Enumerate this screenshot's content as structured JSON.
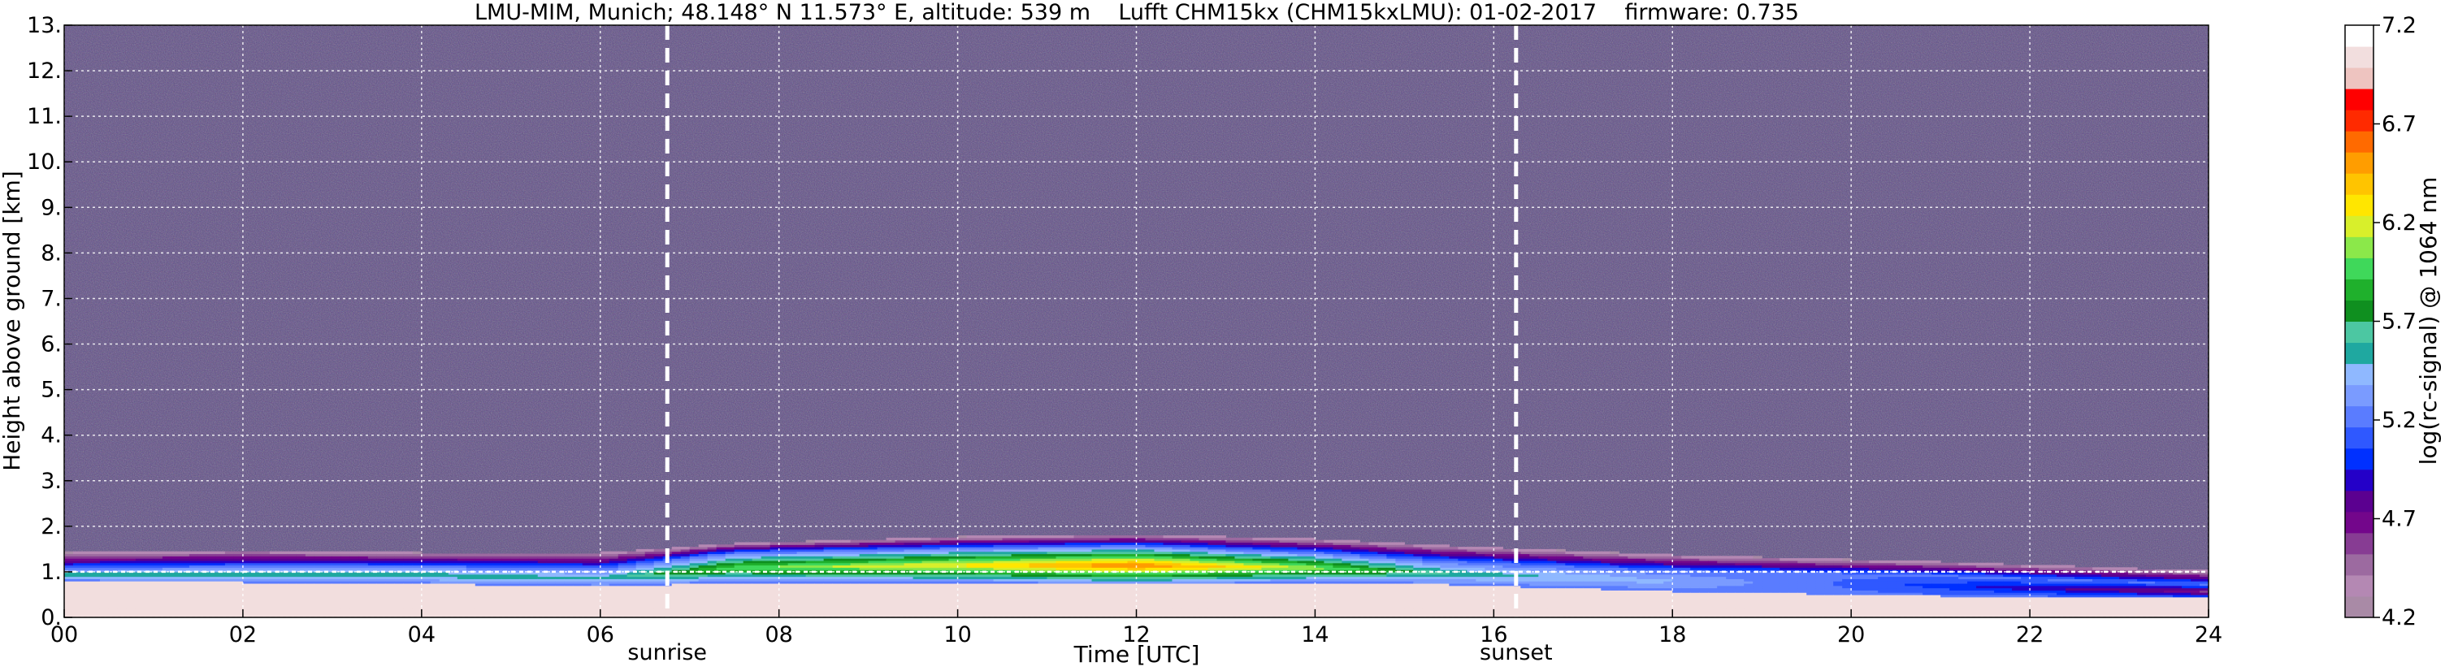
{
  "chart_data": {
    "type": "heatmap",
    "title": "LMU-MIM, Munich; 48.148° N 11.573° E, altitude: 539 m    Lufft CHM15kx (CHM15kxLMU): 01-02-2017    firmware: 0.735",
    "xlabel": "Time [UTC]",
    "ylabel": "Height above ground [km]",
    "colorbar_label": "log(rc-signal) @ 1064 nm",
    "xlim": [
      0,
      24
    ],
    "ylim": [
      0,
      13
    ],
    "x_ticks": [
      "00",
      "02",
      "04",
      "06",
      "08",
      "10",
      "12",
      "14",
      "16",
      "18",
      "20",
      "22",
      "24"
    ],
    "x_tick_values": [
      0,
      2,
      4,
      6,
      8,
      10,
      12,
      14,
      16,
      18,
      20,
      22,
      24
    ],
    "y_ticks": [
      "0.",
      "1.",
      "2.",
      "3.",
      "4.",
      "5.",
      "6.",
      "7.",
      "8.",
      "9.",
      "10.",
      "11.",
      "12.",
      "13."
    ],
    "y_tick_values": [
      0,
      1,
      2,
      3,
      4,
      5,
      6,
      7,
      8,
      9,
      10,
      11,
      12,
      13
    ],
    "colorbar_range": [
      4.2,
      7.2
    ],
    "colorbar_ticks": [
      "4.2",
      "4.7",
      "5.2",
      "5.7",
      "6.2",
      "6.7",
      "7.2"
    ],
    "colorbar_tick_values": [
      4.2,
      4.7,
      5.2,
      5.7,
      6.2,
      6.7,
      7.2
    ],
    "colorbar_colors": [
      "#a98aa6",
      "#b488b3",
      "#9c6aa0",
      "#873c93",
      "#73068b",
      "#5b0090",
      "#2400c8",
      "#0030ff",
      "#2f58ff",
      "#5a7cff",
      "#7a9bff",
      "#8fb8ff",
      "#1fa8a0",
      "#4cc7a2",
      "#0f8f1f",
      "#1fb02c",
      "#3fd85a",
      "#8be84a",
      "#d8ef2b",
      "#ffe600",
      "#ffc400",
      "#ff9d00",
      "#ff6a00",
      "#ff2a00",
      "#ff0000",
      "#eec4c0",
      "#f2dede",
      "#ffffff"
    ],
    "markers": [
      {
        "x": 6.75,
        "label": "sunrise"
      },
      {
        "x": 16.25,
        "label": "sunset"
      }
    ],
    "reference_line_y": 1.0,
    "grid": true,
    "background_color": "#5e4c85",
    "boundary_layer": [
      {
        "t": 0.0,
        "top": 1.4,
        "core_bottom": 0.78,
        "core_top": 1.05,
        "max": 5.6
      },
      {
        "t": 2.0,
        "top": 1.45,
        "core_bottom": 0.75,
        "core_top": 1.1,
        "max": 5.6
      },
      {
        "t": 4.0,
        "top": 1.4,
        "core_bottom": 0.72,
        "core_top": 1.1,
        "max": 5.6
      },
      {
        "t": 6.0,
        "top": 1.4,
        "core_bottom": 0.65,
        "core_top": 1.05,
        "max": 5.5
      },
      {
        "t": 7.5,
        "top": 1.6,
        "core_bottom": 0.75,
        "core_top": 1.4,
        "max": 6.0
      },
      {
        "t": 10.0,
        "top": 1.75,
        "core_bottom": 0.75,
        "core_top": 1.5,
        "max": 6.3
      },
      {
        "t": 12.0,
        "top": 1.8,
        "core_bottom": 0.7,
        "core_top": 1.55,
        "max": 6.6
      },
      {
        "t": 14.0,
        "top": 1.7,
        "core_bottom": 0.75,
        "core_top": 1.4,
        "max": 6.1
      },
      {
        "t": 15.5,
        "top": 1.55,
        "core_bottom": 0.7,
        "core_top": 1.2,
        "max": 5.6
      },
      {
        "t": 18.0,
        "top": 1.35,
        "core_bottom": 0.55,
        "core_top": 1.0,
        "max": 5.4
      },
      {
        "t": 21.0,
        "top": 1.2,
        "core_bottom": 0.45,
        "core_top": 0.9,
        "max": 5.0
      },
      {
        "t": 24.0,
        "top": 1.0,
        "core_bottom": 0.4,
        "core_top": 0.7,
        "max": 4.6
      }
    ]
  }
}
